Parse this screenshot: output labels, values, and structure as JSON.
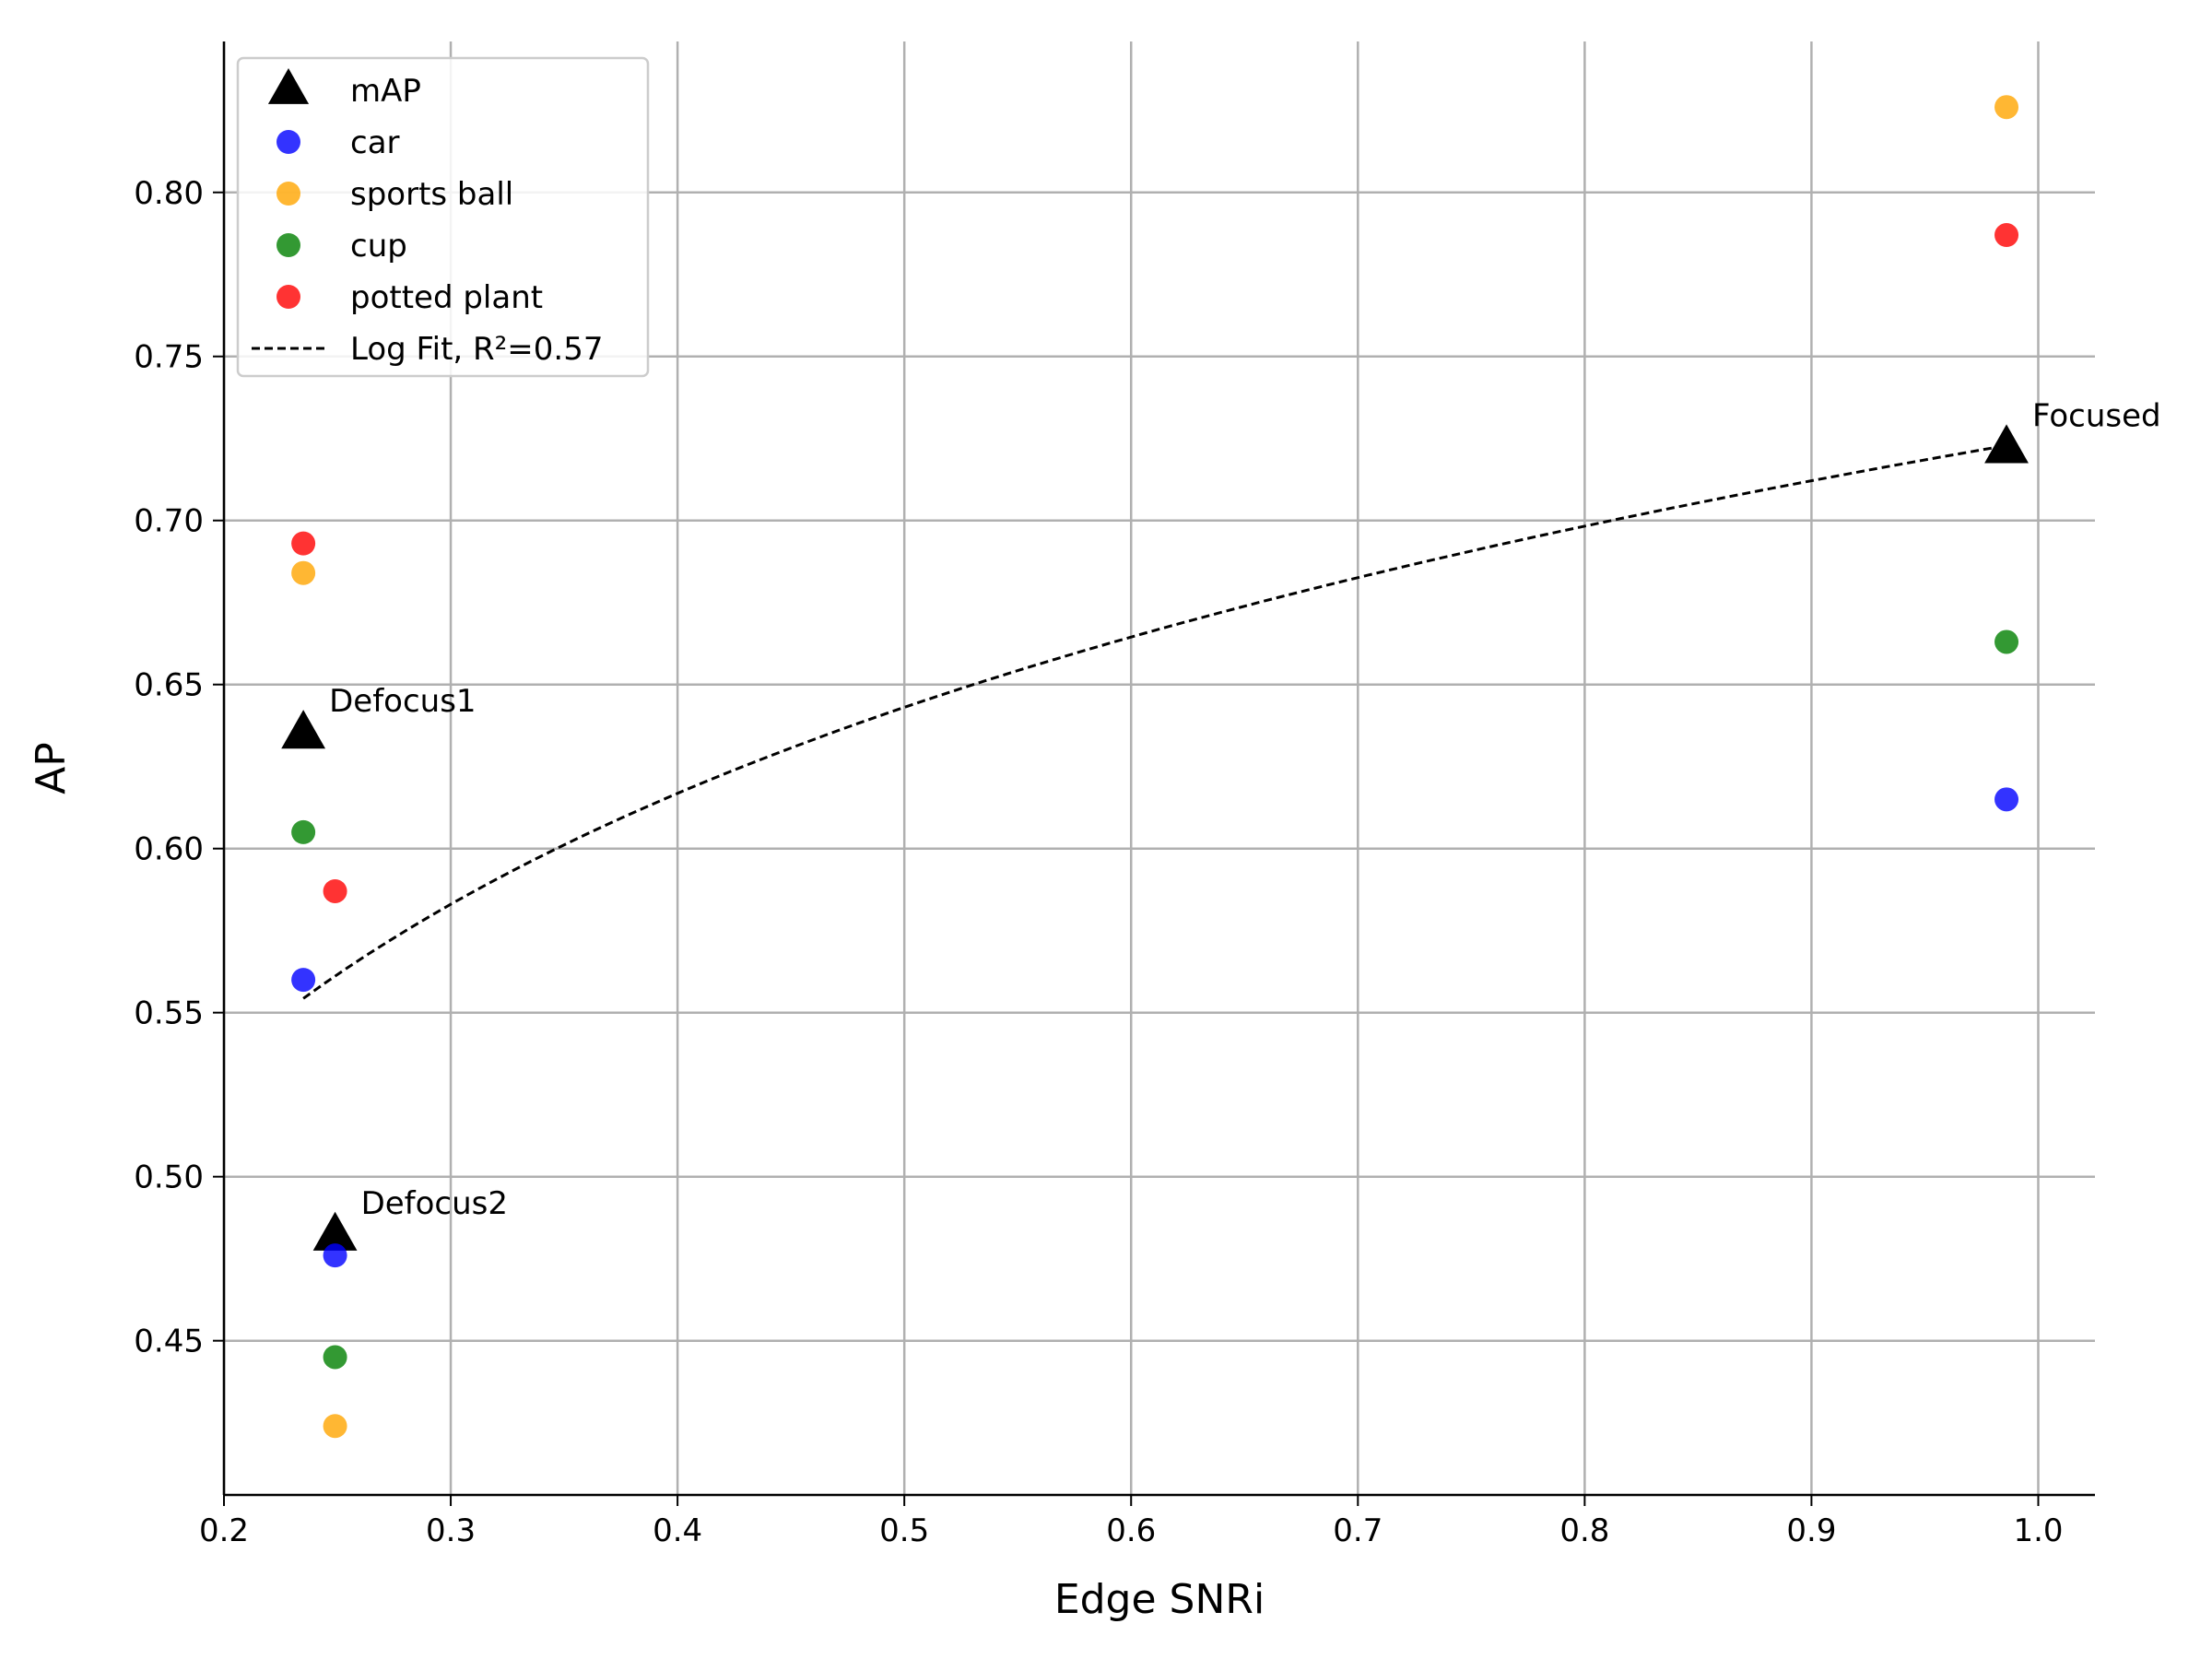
{
  "chart_data": {
    "type": "scatter",
    "xlabel": "Edge SNRi",
    "ylabel": "AP",
    "xlim": [
      0.2,
      1.025
    ],
    "ylim": [
      0.403,
      0.846
    ],
    "x_ticks": [
      "0.2",
      "0.3",
      "0.4",
      "0.5",
      "0.6",
      "0.7",
      "0.8",
      "0.9",
      "1.0"
    ],
    "y_ticks": [
      "0.45",
      "0.50",
      "0.55",
      "0.60",
      "0.65",
      "0.70",
      "0.75",
      "0.80"
    ],
    "grid": true,
    "legend_position": "top-left",
    "series": [
      {
        "name": "mAP",
        "marker": "triangle",
        "color": "#000000",
        "points": [
          {
            "x": 0.235,
            "y": 0.635,
            "label": "Defocus1"
          },
          {
            "x": 0.249,
            "y": 0.482,
            "label": "Defocus2"
          },
          {
            "x": 0.986,
            "y": 0.722,
            "label": "Focused"
          }
        ]
      },
      {
        "name": "car",
        "marker": "circle",
        "color": "#0000ff",
        "points": [
          {
            "x": 0.235,
            "y": 0.56
          },
          {
            "x": 0.249,
            "y": 0.476
          },
          {
            "x": 0.986,
            "y": 0.615
          }
        ]
      },
      {
        "name": "sports ball",
        "marker": "circle",
        "color": "#ffa500",
        "points": [
          {
            "x": 0.235,
            "y": 0.684
          },
          {
            "x": 0.249,
            "y": 0.424
          },
          {
            "x": 0.986,
            "y": 0.826
          }
        ]
      },
      {
        "name": "cup",
        "marker": "circle",
        "color": "#008000",
        "points": [
          {
            "x": 0.235,
            "y": 0.605
          },
          {
            "x": 0.249,
            "y": 0.445
          },
          {
            "x": 0.986,
            "y": 0.663
          }
        ]
      },
      {
        "name": "potted plant",
        "marker": "circle",
        "color": "#ff0000",
        "points": [
          {
            "x": 0.235,
            "y": 0.693
          },
          {
            "x": 0.249,
            "y": 0.587
          },
          {
            "x": 0.986,
            "y": 0.787
          }
        ]
      }
    ],
    "fit": {
      "name": "Log Fit, R²=0.57",
      "style": "dashed",
      "color": "#000000",
      "x_range": [
        0.235,
        0.986
      ],
      "a": 0.7245,
      "b": 0.1175
    }
  }
}
